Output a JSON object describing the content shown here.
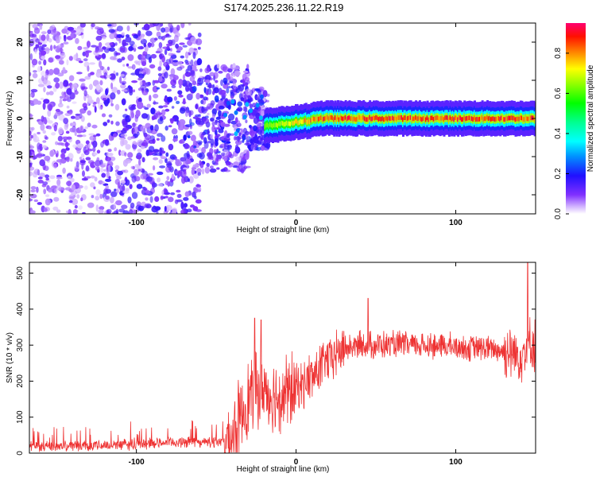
{
  "title": "S174.2025.236.11.22.R19",
  "chart_data": [
    {
      "type": "heatmap",
      "xlabel": "Height of straight line (km)",
      "ylabel": "Frequency (Hz)",
      "xlim": [
        -167,
        150
      ],
      "ylim": [
        -25,
        25
      ],
      "xticks": [
        -100,
        0,
        100
      ],
      "yticks": [
        -20,
        -10,
        0,
        10,
        20
      ],
      "colorbar": {
        "label": "Normalized spectral amplitude",
        "range": [
          0,
          0.95
        ],
        "ticks": [
          "0.0",
          "0.2",
          "0.4",
          "0.6",
          "0.8"
        ],
        "stops": [
          "#ffffff",
          "#a040ff",
          "#4020ff",
          "#0000ff",
          "#00a0ff",
          "#00ffff",
          "#00ff80",
          "#00ff00",
          "#80ff00",
          "#ffff00",
          "#ff8000",
          "#ff0000",
          "#ff0066"
        ]
      },
      "regions": [
        {
          "x_from": -167,
          "x_to": -20,
          "description_level": "scattered low amplitude noise, freq spread -25..25 Hz"
        },
        {
          "x_from": -20,
          "x_to": 150,
          "center_freq": 0,
          "half_width": 1.5,
          "peak_amplitude": 0.9
        }
      ]
    },
    {
      "type": "line",
      "xlabel": "Height of straight line (km)",
      "ylabel": "SNR (10 * v/v)",
      "xlim": [
        -167,
        150
      ],
      "ylim": [
        0,
        530
      ],
      "xticks": [
        -100,
        0,
        100
      ],
      "yticks": [
        0,
        100,
        200,
        300,
        400,
        500
      ],
      "color": "#ee3333",
      "series": [
        {
          "name": "SNR",
          "x": [
            -167,
            -150,
            -120,
            -100,
            -80,
            -60,
            -45,
            -40,
            -35,
            -30,
            -25,
            -20,
            -15,
            -10,
            0,
            10,
            20,
            30,
            40,
            60,
            80,
            100,
            120,
            130,
            140,
            145,
            150
          ],
          "y": [
            20,
            20,
            22,
            25,
            30,
            30,
            30,
            50,
            100,
            150,
            170,
            180,
            160,
            160,
            180,
            210,
            260,
            290,
            300,
            300,
            300,
            295,
            290,
            285,
            270,
            300,
            300
          ]
        }
      ],
      "spikes": [
        {
          "x": -26,
          "y": 375
        },
        {
          "x": -22,
          "y": 370
        },
        {
          "x": 45,
          "y": 430
        },
        {
          "x": 145,
          "y": 530
        }
      ]
    }
  ]
}
